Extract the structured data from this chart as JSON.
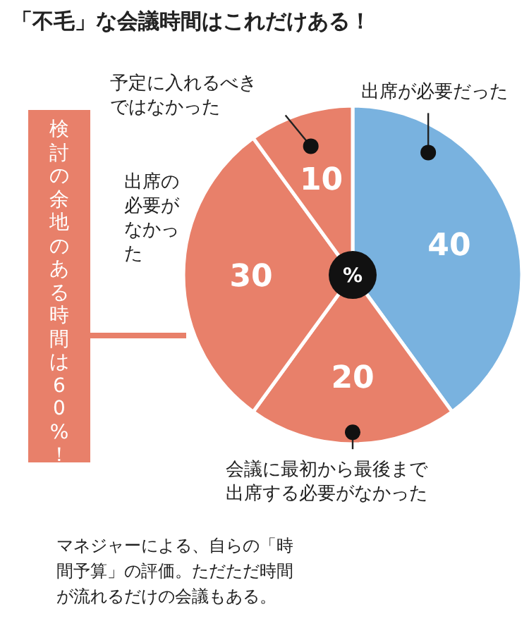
{
  "chart_data": {
    "type": "pie",
    "title": "「不毛」な会議時間はこれだけある！",
    "categories": [
      "出席が必要だった",
      "会議に最初から最後まで出席する必要がなかった",
      "出席の必要がなかった",
      "予定に入れるべきではなかった"
    ],
    "values": [
      40,
      20,
      30,
      10
    ],
    "colors": [
      "#79b2df",
      "#e8806a",
      "#e8806a",
      "#e8806a"
    ],
    "data_labels": true,
    "annotations": [
      "検討の余地のある時間は60%！",
      "%",
      "マネジャーによる、自らの「時間予算」の評価。ただただ時間が流れるだけの会議もある。"
    ]
  }
}
